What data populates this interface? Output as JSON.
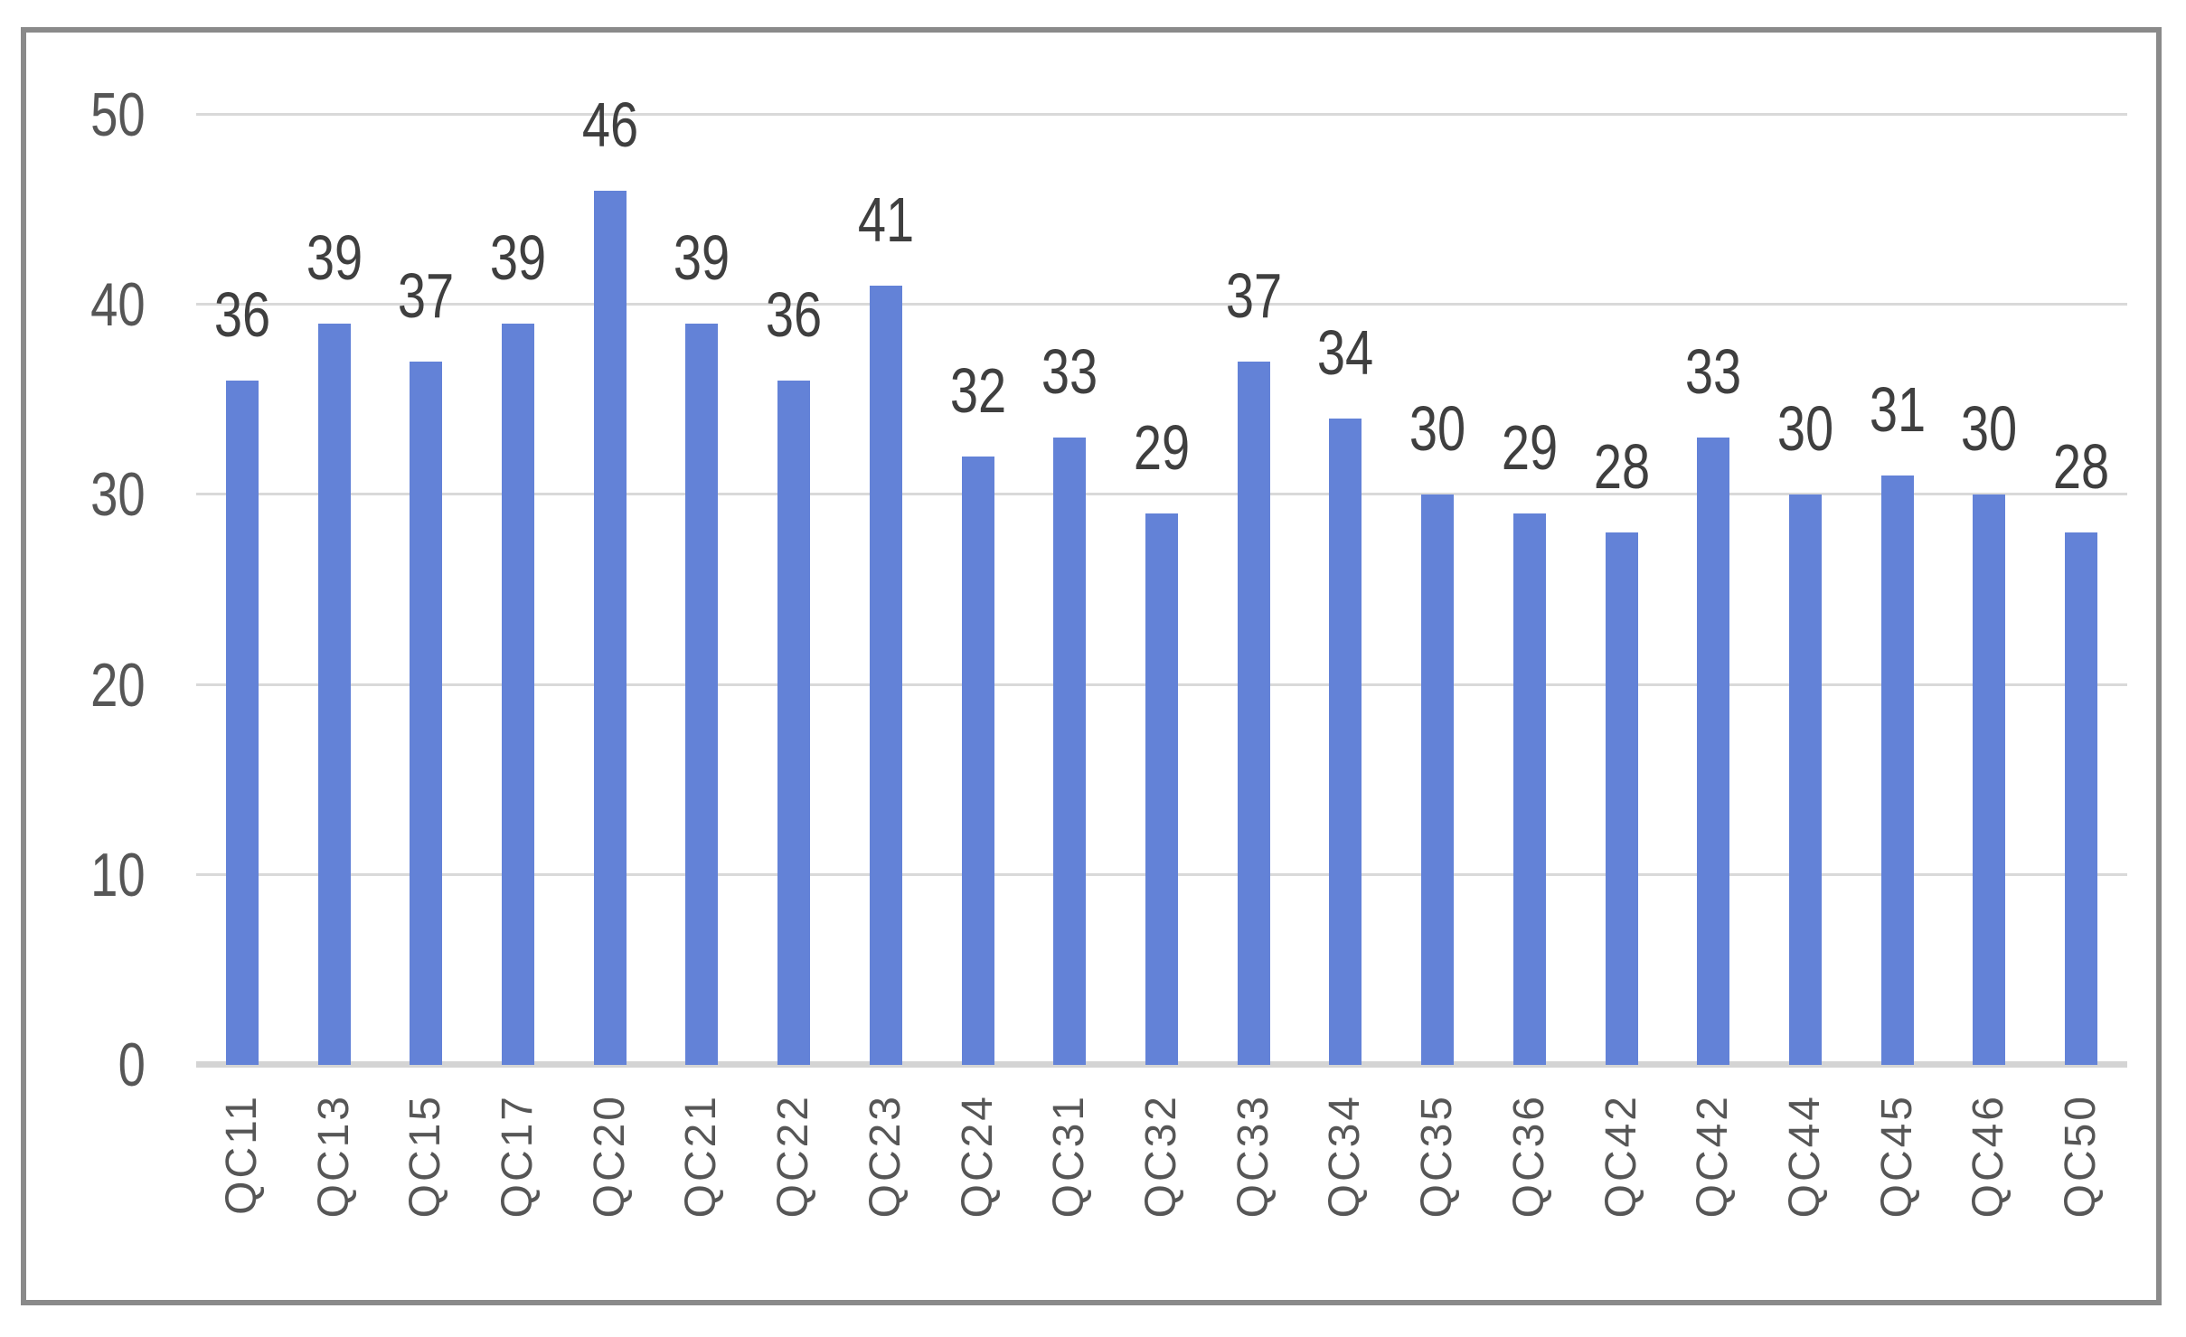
{
  "chart_data": {
    "type": "bar",
    "title": "",
    "xlabel": "",
    "ylabel": "",
    "categories": [
      "QC11",
      "QC13",
      "QC15",
      "QC17",
      "QC20",
      "QC21",
      "QC22",
      "QC23",
      "QC24",
      "QC31",
      "QC32",
      "QC33",
      "QC34",
      "QC35",
      "QC36",
      "QC42",
      "QC42",
      "QC44",
      "QC45",
      "QC46",
      "QC50"
    ],
    "values": [
      36,
      39,
      37,
      39,
      46,
      39,
      36,
      41,
      32,
      33,
      29,
      37,
      34,
      30,
      29,
      28,
      33,
      30,
      31,
      30,
      28
    ],
    "ylim": [
      0,
      50
    ],
    "yticks": [
      0,
      10,
      20,
      30,
      40,
      50
    ],
    "grid": true,
    "legend": false,
    "data_labels": "above-bars",
    "x_tick_rotation_degrees": 90,
    "style": {
      "bar_color": "#6382d7",
      "gridline_color": "#d9d9d9",
      "axis_line_color": "#d4d4d4",
      "frame_border_color": "#8a8a8a",
      "value_label_color": "#3f3f3f",
      "tick_label_color": "#565656",
      "background_color": "#ffffff"
    }
  }
}
